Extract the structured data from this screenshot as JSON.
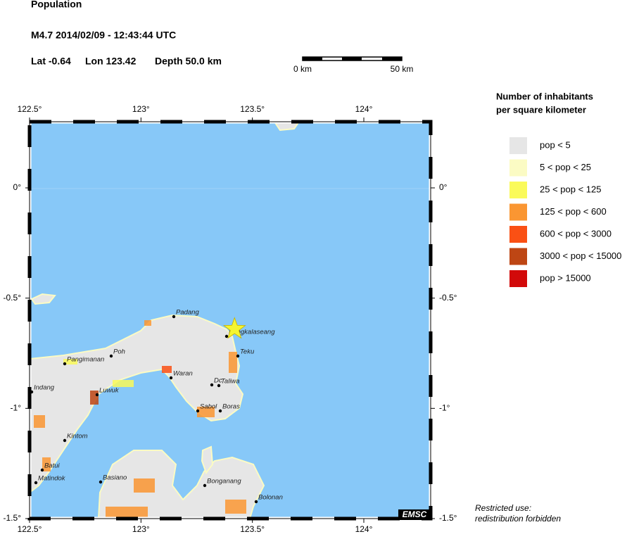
{
  "map": {
    "title": "Population",
    "event": "M4.7  2014/02/09 - 12:43:44 UTC",
    "lat": {
      "value": -0.64,
      "label": "Lat -0.64"
    },
    "lon": {
      "value": 123.42,
      "label": "Lon 123.42"
    },
    "depth": "Depth  50.0 km",
    "scale_labels": [
      "0 km",
      "50 km"
    ],
    "lonlim": [
      122.5,
      124.3
    ],
    "latlim": [
      0.3,
      -1.5
    ],
    "xticks": [
      {
        "value": 122.5,
        "label": "122.5°"
      },
      {
        "value": 123,
        "label": "123°"
      },
      {
        "value": 123.5,
        "label": "123.5°"
      },
      {
        "value": 124,
        "label": "124°"
      }
    ],
    "yticks": [
      {
        "value": 0,
        "label": "0°"
      },
      {
        "value": -0.5,
        "label": "-0.5°"
      },
      {
        "value": -1,
        "label": "-1°"
      },
      {
        "value": -1.5,
        "label": "-1.5°"
      }
    ],
    "places": [
      "Padang",
      "Pangkalaseang",
      "Teku",
      "Poh",
      "Pangimanan",
      "Waran",
      "Dc",
      "Taliwa",
      "Indang",
      "Luwuk",
      "Sabol",
      "Boras",
      "Kintom",
      "Batui",
      "Matindok",
      "Basiano",
      "Bonganang",
      "Bolonan"
    ],
    "badge": "EMSC",
    "notice": [
      "Restricted use:",
      "redistribution forbidden"
    ],
    "legend": {
      "title": [
        "Number of inhabitants",
        "per square kilometer"
      ],
      "items": [
        {
          "label": "pop < 5",
          "color": "#e6e6e6"
        },
        {
          "label": "5 < pop < 25",
          "color": "#fbfbc4"
        },
        {
          "label": "25 < pop < 125",
          "color": "#fafa5a"
        },
        {
          "label": "125 < pop < 600",
          "color": "#fa9632"
        },
        {
          "label": "600 < pop < 3000",
          "color": "#fa5014"
        },
        {
          "label": "3000 < pop < 15000",
          "color": "#be4614"
        },
        {
          "label": "pop > 15000",
          "color": "#d20a0a"
        }
      ]
    }
  }
}
